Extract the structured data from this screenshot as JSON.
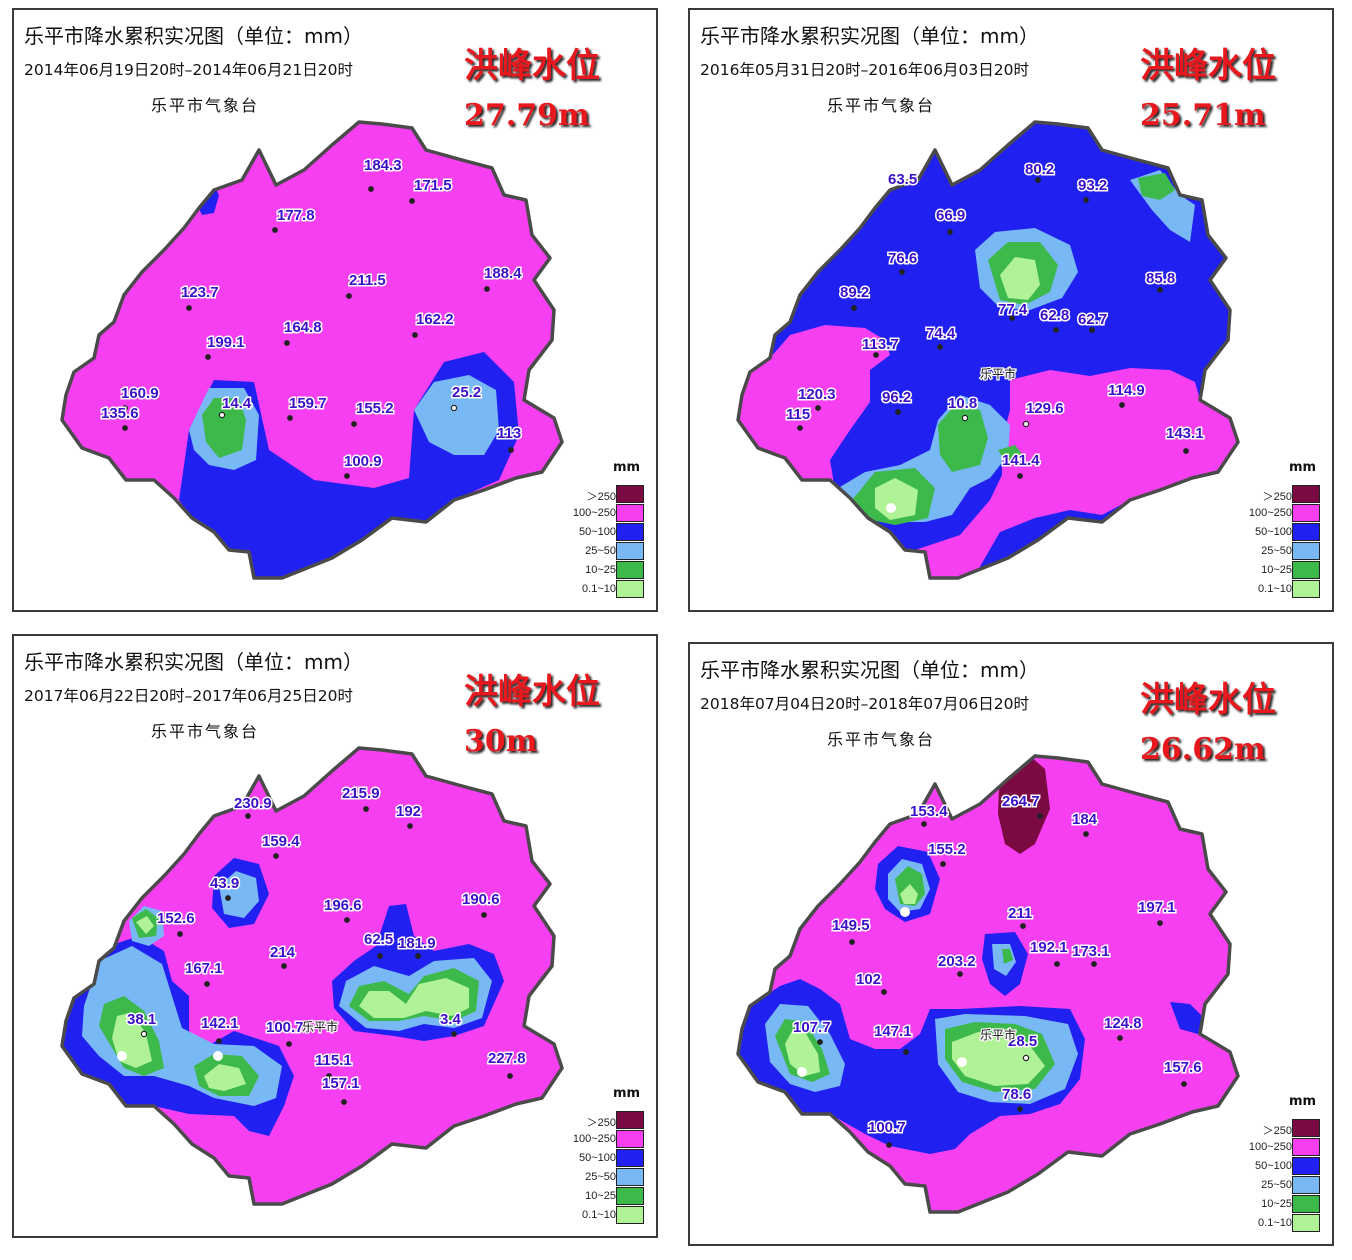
{
  "colors": {
    "gt250": "#7b0a43",
    "100_250": "#f53ff0",
    "50_100": "#2020f0",
    "25_50": "#78b8f5",
    "10_25": "#3cb94a",
    "0_10": "#b0f296",
    "outline": "#4a4a4a"
  },
  "legend": {
    "unit": "mm",
    "items": [
      "＞250",
      "100~250",
      "50~100",
      "25~50",
      "10~25",
      "0.1~10"
    ]
  },
  "panels": [
    {
      "title": "乐平市降水累积实况图（单位：mm）",
      "date_range": "2014年06月19日20时–2014年06月21日20时",
      "station": "乐平市气象台",
      "flood_label": "洪峰水位",
      "flood_value": "27.79m",
      "city_label": "",
      "points": [
        "184.3",
        "171.5",
        "177.8",
        "211.5",
        "188.4",
        "123.7",
        "162.2",
        "164.8",
        "199.1",
        "160.9",
        "135.6",
        "14.4",
        "159.7",
        "155.2",
        "25.2",
        "113",
        "100.9"
      ]
    },
    {
      "title": "乐平市降水累积实况图（单位：mm）",
      "date_range": "2016年05月31日20时–2016年06月03日20时",
      "station": "乐平市气象台",
      "flood_label": "洪峰水位",
      "flood_value": "25.71m",
      "city_label": "乐平市",
      "points": [
        "80.2",
        "63.5",
        "93.2",
        "66.9",
        "76.6",
        "85.8",
        "89.2",
        "77.4",
        "62.8",
        "62.7",
        "74.4",
        "113.7",
        "120.3",
        "115",
        "96.2",
        "10.8",
        "129.6",
        "114.9",
        "143.1",
        "141.4"
      ]
    },
    {
      "title": "乐平市降水累积实况图（单位：mm）",
      "date_range": "2017年06月22日20时–2017年06月25日20时",
      "station": "乐平市气象台",
      "flood_label": "洪峰水位",
      "flood_value": "30m",
      "city_label": "乐平市",
      "points": [
        "230.9",
        "215.9",
        "192",
        "159.4",
        "43.9",
        "196.6",
        "190.6",
        "152.6",
        "62.5",
        "181.9",
        "214",
        "167.1",
        "38.1",
        "142.1",
        "100.7",
        "3.4",
        "115.1",
        "157.1",
        "227.8"
      ]
    },
    {
      "title": "乐平市降水累积实况图（单位：mm）",
      "date_range": "2018年07月04日20时–2018年07月06日20时",
      "station": "乐平市气象台",
      "flood_label": "洪峰水位",
      "flood_value": "26.62m",
      "city_label": "乐平市",
      "points": [
        "264.7",
        "153.4",
        "184",
        "155.2",
        "211",
        "197.1",
        "149.5",
        "192.1",
        "173.1",
        "203.2",
        "102",
        "107.7",
        "147.1",
        "124.8",
        "28.5",
        "157.6",
        "78.6",
        "100.7"
      ]
    }
  ]
}
